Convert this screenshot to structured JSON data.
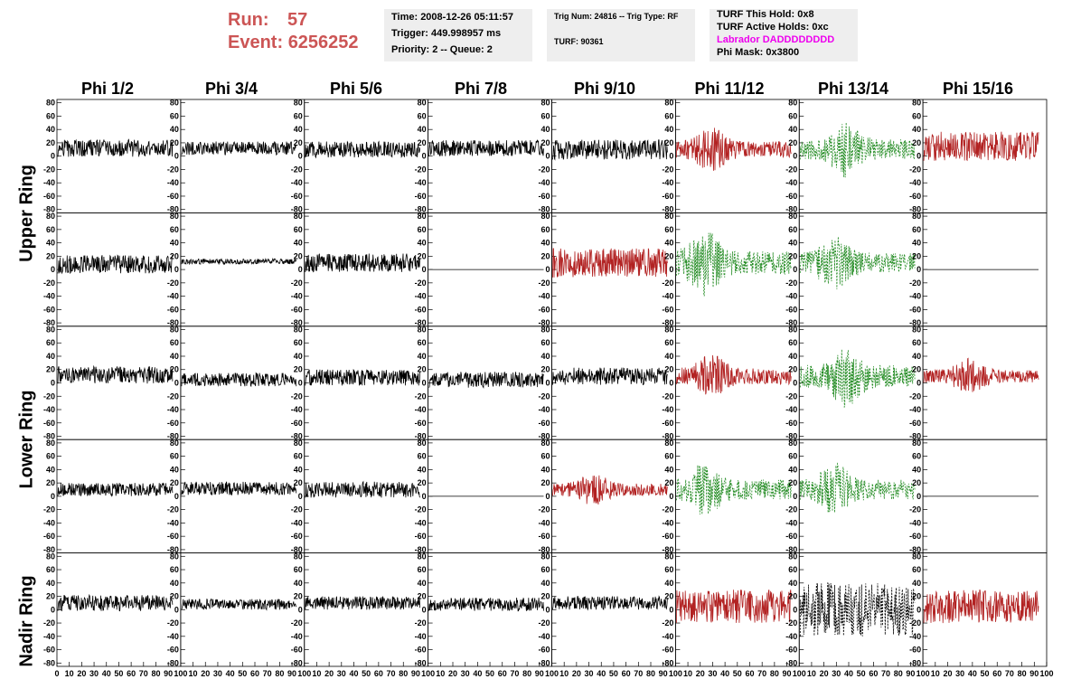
{
  "header": {
    "run_label": "Run:",
    "run_value": "57",
    "event_label": "Event:",
    "event_value": "6256252",
    "time_line": "Time: 2008-12-26 05:11:57",
    "trigger_line": "Trigger: 449.998957 ms",
    "priority_line": "Priority: 2 -- Queue: 2",
    "trig_line": "Trig Num: 24816 -- Trig Type: RF",
    "turf_line": "TURF: 90361",
    "turf_hold_line": "TURF This Hold: 0x8",
    "turf_active_line": "TURF Active Holds: 0xc",
    "labrador_line": "Labrador DADDDDDDDD",
    "phi_mask_line": "Phi Mask: 0x3800"
  },
  "colors": {
    "run_text": "#cc5555",
    "labrador_text": "#ee00ee",
    "info_bg": "#eeeeee",
    "trace_normal": "#000000",
    "trace_hot": "#b22222",
    "trace_green": "#228b22"
  },
  "chart_data": {
    "type": "line",
    "columns": [
      "Phi 1/2",
      "Phi 3/4",
      "Phi 5/6",
      "Phi 7/8",
      "Phi 9/10",
      "Phi 11/12",
      "Phi 13/14",
      "Phi 15/16"
    ],
    "rings": [
      "Upper Ring",
      "Lower Ring",
      "Nadir Ring"
    ],
    "ylim": [
      -85,
      85
    ],
    "yticks": [
      -80,
      -60,
      -40,
      -20,
      0,
      20,
      40,
      60,
      80
    ],
    "xlim": [
      0,
      100
    ],
    "xticks": [
      0,
      10,
      20,
      30,
      40,
      50,
      60,
      70,
      80,
      90,
      100
    ],
    "xtick_labels": [
      "0",
      "10",
      "20",
      "30",
      "40",
      "50",
      "60",
      "70",
      "80",
      "90",
      "100"
    ],
    "panels": [
      [
        {
          "style": "black",
          "offset": 12,
          "amp": 13
        },
        {
          "style": "black",
          "offset": 12,
          "amp": 10
        },
        {
          "style": "black",
          "offset": 10,
          "amp": 12
        },
        {
          "style": "black",
          "offset": 12,
          "amp": 12
        },
        {
          "style": "black",
          "offset": 10,
          "amp": 15
        },
        {
          "style": "red",
          "offset": 10,
          "amp": 20,
          "burst": 30
        },
        {
          "style": "green",
          "offset": 10,
          "amp": 25,
          "burst": 40
        },
        {
          "style": "red",
          "offset": 15,
          "amp": 22
        }
      ],
      [
        {
          "style": "black",
          "offset": 8,
          "amp": 14
        },
        {
          "style": "black",
          "offset": 12,
          "amp": 4
        },
        {
          "style": "black",
          "offset": 10,
          "amp": 14
        },
        {
          "style": "flat",
          "offset": 0,
          "amp": 0
        },
        {
          "style": "red",
          "offset": 10,
          "amp": 22
        },
        {
          "style": "green",
          "offset": 10,
          "amp": 30,
          "burst": 25
        },
        {
          "style": "green",
          "offset": 10,
          "amp": 25,
          "burst": 30
        },
        {
          "style": "flat",
          "offset": 0,
          "amp": 0
        }
      ],
      [
        {
          "style": "black",
          "offset": 12,
          "amp": 13
        },
        {
          "style": "black",
          "offset": 5,
          "amp": 10
        },
        {
          "style": "black",
          "offset": 8,
          "amp": 12
        },
        {
          "style": "black",
          "offset": 5,
          "amp": 12
        },
        {
          "style": "black",
          "offset": 10,
          "amp": 13
        },
        {
          "style": "red",
          "offset": 10,
          "amp": 20,
          "burst": 30
        },
        {
          "style": "green",
          "offset": 10,
          "amp": 28,
          "burst": 40
        },
        {
          "style": "red",
          "offset": 10,
          "amp": 16,
          "burst": 40
        }
      ],
      [
        {
          "style": "black",
          "offset": 10,
          "amp": 10
        },
        {
          "style": "black",
          "offset": 12,
          "amp": 10
        },
        {
          "style": "black",
          "offset": 10,
          "amp": 12
        },
        {
          "style": "flat",
          "offset": 0,
          "amp": 0
        },
        {
          "style": "red",
          "offset": 10,
          "amp": 15,
          "burst": 35
        },
        {
          "style": "green",
          "offset": 10,
          "amp": 25,
          "burst": 25
        },
        {
          "style": "green",
          "offset": 10,
          "amp": 25,
          "burst": 30
        },
        {
          "style": "flat",
          "offset": 0,
          "amp": 0
        }
      ],
      [
        {
          "style": "black",
          "offset": 10,
          "amp": 12
        },
        {
          "style": "black",
          "offset": 8,
          "amp": 8
        },
        {
          "style": "black",
          "offset": 10,
          "amp": 10
        },
        {
          "style": "black",
          "offset": 8,
          "amp": 10
        },
        {
          "style": "black",
          "offset": 10,
          "amp": 10
        },
        {
          "style": "red",
          "offset": 5,
          "amp": 25
        },
        {
          "style": "dotted",
          "offset": 0,
          "amp": 40
        },
        {
          "style": "red",
          "offset": 5,
          "amp": 25
        }
      ]
    ]
  }
}
